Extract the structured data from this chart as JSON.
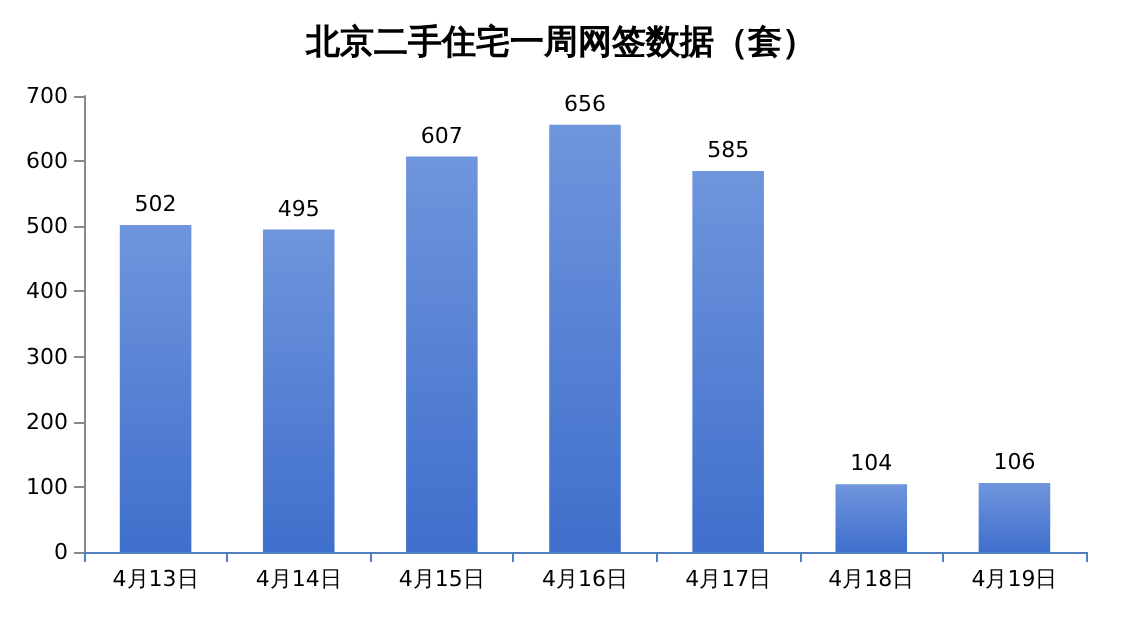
{
  "chart_data": {
    "type": "bar",
    "title": "北京二手住宅一周网签数据（套）",
    "categories": [
      "4月13日",
      "4月14日",
      "4月15日",
      "4月16日",
      "4月17日",
      "4月18日",
      "4月19日"
    ],
    "values": [
      502,
      495,
      607,
      656,
      585,
      104,
      106
    ],
    "color": "#3f6fcc",
    "ylim": [
      0,
      700
    ],
    "yticks": [
      0,
      100,
      200,
      300,
      400,
      500,
      600,
      700
    ],
    "grid": false,
    "data_labels": true
  }
}
